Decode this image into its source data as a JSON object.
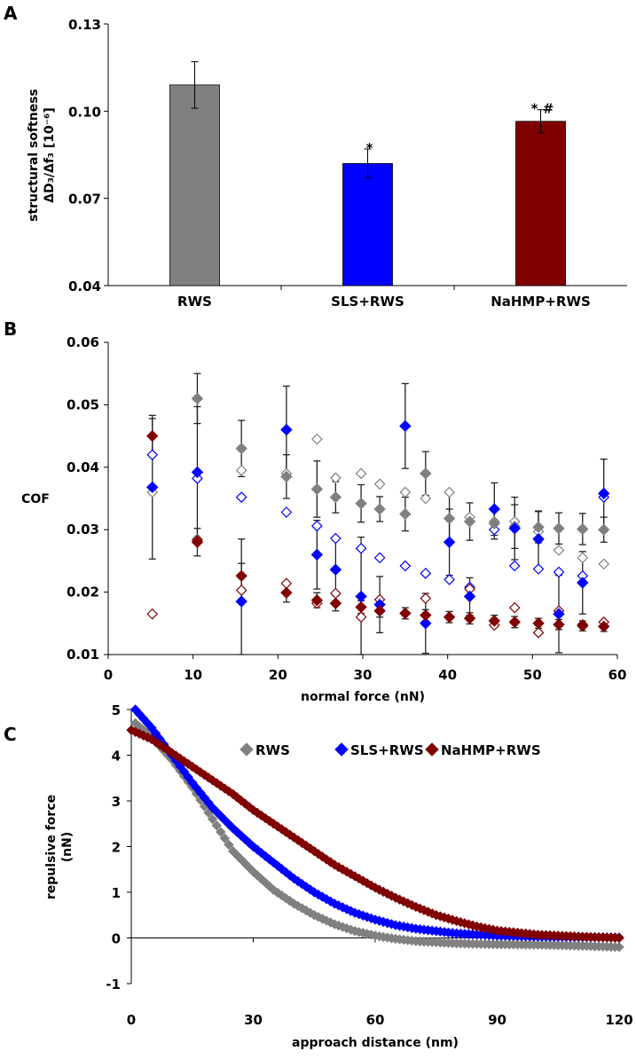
{
  "colors": {
    "RWS": "#808080",
    "SLS+RWS": "#0000ff",
    "NaHMP+RWS": "#800000",
    "axis": "#000000"
  },
  "chart_data": [
    {
      "panel": "A",
      "type": "bar",
      "ylabel_line1": "structural softness",
      "ylabel_line2": "ΔD₃/Δf₃ [10⁻⁶]",
      "xlabel": "",
      "ylim": [
        0.04,
        0.13
      ],
      "yticks": [
        "0.04",
        "0.07",
        "0.10",
        "0.13"
      ],
      "categories": [
        "RWS",
        "SLS+RWS",
        "NaHMP+RWS"
      ],
      "values": [
        0.109,
        0.082,
        0.0965
      ],
      "errors": [
        0.008,
        0.005,
        0.004
      ],
      "annotations": [
        "",
        "*",
        "* #"
      ]
    },
    {
      "panel": "B",
      "type": "scatter",
      "xlabel": "normal force (nN)",
      "ylabel": "COF",
      "xlim": [
        0,
        60
      ],
      "ylim": [
        0.01,
        0.06
      ],
      "xticks": [
        "0",
        "10",
        "20",
        "30",
        "40",
        "50",
        "60"
      ],
      "yticks": [
        "0.01",
        "0.02",
        "0.03",
        "0.04",
        "0.05",
        "0.06"
      ],
      "series": [
        {
          "name": "RWS",
          "filled": true,
          "x": [
            10.5,
            15.7,
            21,
            24.6,
            26.8,
            29.8,
            32,
            35,
            37.4,
            40.2,
            42.6,
            45.5,
            47.9,
            50.7,
            53.1,
            55.9,
            58.4
          ],
          "y": [
            0.051,
            0.043,
            0.0385,
            0.0365,
            0.0352,
            0.0342,
            0.0333,
            0.0325,
            0.039,
            0.0318,
            0.0313,
            0.031,
            0.0305,
            0.0304,
            0.0302,
            0.0301,
            0.03
          ],
          "err": [
            0.004,
            0.0045,
            0.0035,
            0.0045,
            0.0025,
            0.003,
            0.002,
            0.0027,
            0.0035,
            0.004,
            0.003,
            0.0025,
            0.0035,
            0.0025,
            0.0025,
            0.0025,
            0.002
          ]
        },
        {
          "name": "RWS",
          "filled": false,
          "x": [
            5.2,
            10.5,
            15.7,
            21,
            24.6,
            26.8,
            29.8,
            32,
            35,
            37.4,
            40.2,
            42.6,
            45.5,
            47.9,
            50.7,
            53.1,
            55.9,
            58.4
          ],
          "y": [
            0.036,
            0.0285,
            0.0395,
            0.039,
            0.0445,
            0.0383,
            0.039,
            0.0373,
            0.036,
            0.035,
            0.036,
            0.032,
            0.0313,
            0.0313,
            0.0297,
            0.0267,
            0.0255,
            0.0245
          ]
        },
        {
          "name": "SLS+RWS",
          "filled": true,
          "x": [
            5.2,
            10.5,
            15.7,
            21,
            24.6,
            26.8,
            29.8,
            32,
            35,
            37.4,
            40.2,
            42.6,
            45.5,
            47.9,
            50.7,
            53.1,
            55.9,
            58.4
          ],
          "y": [
            0.0368,
            0.0392,
            0.0185,
            0.046,
            0.026,
            0.0236,
            0.0193,
            0.018,
            0.0466,
            0.015,
            0.028,
            0.0193,
            0.0333,
            0.0302,
            0.0285,
            0.0165,
            0.0215,
            0.0358
          ],
          "err": [
            0.0115,
            0.0105,
            0.01,
            0.007,
            0.0055,
            0.005,
            0.0095,
            0.0045,
            0.0068,
            0.0048,
            0.0053,
            0.003,
            0.0042,
            0.005,
            0.0045,
            0.0062,
            0.005,
            0.0055
          ]
        },
        {
          "name": "SLS+RWS",
          "filled": false,
          "x": [
            5.2,
            10.5,
            15.7,
            21,
            24.6,
            26.8,
            29.8,
            32,
            35,
            37.4,
            40.2,
            42.6,
            45.5,
            47.9,
            50.7,
            53.1,
            55.9,
            58.4
          ],
          "y": [
            0.042,
            0.0382,
            0.0352,
            0.0328,
            0.0306,
            0.0286,
            0.027,
            0.0255,
            0.0242,
            0.023,
            0.022,
            0.0208,
            0.03,
            0.0242,
            0.0237,
            0.0232,
            0.0226,
            0.0352
          ]
        },
        {
          "name": "NaHMP+RWS",
          "filled": true,
          "x": [
            5.2,
            10.5,
            15.7,
            21,
            24.6,
            26.8,
            29.8,
            32,
            35,
            37.4,
            40.2,
            42.6,
            45.5,
            47.9,
            50.7,
            53.1,
            55.9,
            58.4
          ],
          "y": [
            0.045,
            0.028,
            0.0226,
            0.0199,
            0.0187,
            0.0182,
            0.0176,
            0.017,
            0.0166,
            0.0163,
            0.016,
            0.0158,
            0.0154,
            0.0152,
            0.015,
            0.0148,
            0.0146,
            0.0145
          ],
          "err": [
            0.0028,
            0.0022,
            0.002,
            0.0015,
            0.0012,
            0.0012,
            0.001,
            0.001,
            0.0009,
            0.0009,
            0.0009,
            0.0009,
            0.0009,
            0.0009,
            0.0008,
            0.0008,
            0.0008,
            0.0008
          ]
        },
        {
          "name": "NaHMP+RWS",
          "filled": false,
          "x": [
            5.2,
            10.5,
            15.7,
            21,
            24.6,
            26.8,
            29.8,
            32,
            35,
            37.4,
            40.2,
            42.6,
            45.5,
            47.9,
            50.7,
            53.1,
            55.9,
            58.4
          ],
          "y": [
            0.0165,
            0.0283,
            0.0203,
            0.0214,
            0.0182,
            0.0198,
            0.016,
            0.0188,
            0.0166,
            0.019,
            0.016,
            0.0205,
            0.0147,
            0.0175,
            0.0135,
            0.017,
            0.0148,
            0.0152
          ]
        }
      ]
    },
    {
      "panel": "C",
      "type": "line",
      "xlabel": "approach distance (nm)",
      "ylabel_line1": "repulsive force",
      "ylabel_line2": "(nN)",
      "xlim": [
        0,
        120
      ],
      "ylim": [
        -1,
        5
      ],
      "xticks": [
        "0",
        "30",
        "60",
        "90",
        "120"
      ],
      "yticks": [
        "-1",
        "0",
        "1",
        "2",
        "3",
        "4",
        "5"
      ],
      "legend": [
        "RWS",
        "SLS+RWS",
        "NaHMP+RWS"
      ],
      "legend_position": "top-right",
      "series": [
        {
          "name": "RWS",
          "points": [
            [
              1,
              4.7
            ],
            [
              5,
              4.4
            ],
            [
              10,
              3.9
            ],
            [
              15,
              3.3
            ],
            [
              20,
              2.6
            ],
            [
              25,
              1.9
            ],
            [
              30,
              1.45
            ],
            [
              35,
              1.05
            ],
            [
              40,
              0.75
            ],
            [
              45,
              0.5
            ],
            [
              50,
              0.3
            ],
            [
              55,
              0.15
            ],
            [
              60,
              0.05
            ],
            [
              65,
              -0.02
            ],
            [
              70,
              -0.07
            ],
            [
              80,
              -0.12
            ],
            [
              90,
              -0.14
            ],
            [
              100,
              -0.15
            ],
            [
              110,
              -0.17
            ],
            [
              120,
              -0.2
            ]
          ]
        },
        {
          "name": "SLS+RWS",
          "points": [
            [
              1,
              5
            ],
            [
              5,
              4.6
            ],
            [
              10,
              4.0
            ],
            [
              15,
              3.4
            ],
            [
              20,
              2.85
            ],
            [
              25,
              2.4
            ],
            [
              30,
              2.0
            ],
            [
              35,
              1.65
            ],
            [
              40,
              1.3
            ],
            [
              45,
              1.0
            ],
            [
              50,
              0.75
            ],
            [
              55,
              0.55
            ],
            [
              60,
              0.4
            ],
            [
              65,
              0.28
            ],
            [
              70,
              0.2
            ],
            [
              80,
              0.1
            ],
            [
              90,
              0.05
            ],
            [
              100,
              0.03
            ],
            [
              110,
              0.02
            ],
            [
              120,
              0.01
            ]
          ]
        },
        {
          "name": "NaHMP+RWS",
          "points": [
            [
              0,
              4.55
            ],
            [
              5,
              4.35
            ],
            [
              10,
              4.05
            ],
            [
              15,
              3.75
            ],
            [
              20,
              3.45
            ],
            [
              25,
              3.15
            ],
            [
              30,
              2.8
            ],
            [
              35,
              2.5
            ],
            [
              40,
              2.2
            ],
            [
              45,
              1.9
            ],
            [
              50,
              1.6
            ],
            [
              55,
              1.35
            ],
            [
              60,
              1.1
            ],
            [
              65,
              0.88
            ],
            [
              70,
              0.68
            ],
            [
              75,
              0.5
            ],
            [
              80,
              0.37
            ],
            [
              85,
              0.25
            ],
            [
              90,
              0.16
            ],
            [
              100,
              0.07
            ],
            [
              110,
              0.03
            ],
            [
              120,
              0.0
            ]
          ]
        }
      ]
    }
  ],
  "panels": {
    "a": "A",
    "b": "B",
    "c": "C"
  }
}
